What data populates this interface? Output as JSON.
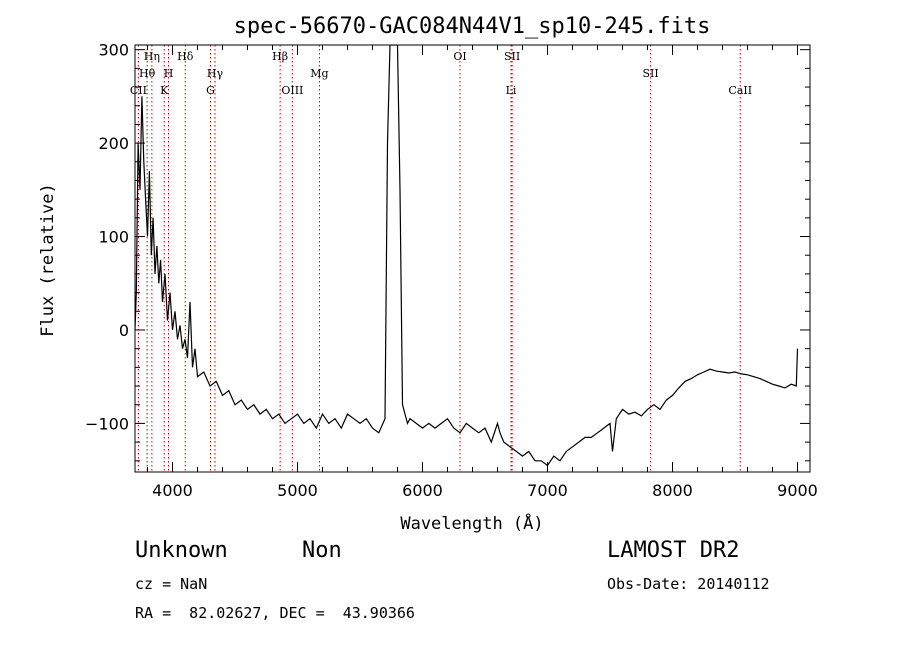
{
  "chart_data": {
    "type": "line",
    "title": "spec-56670-GAC084N44V1_sp10-245.fits",
    "xlabel": "Wavelength (Å)",
    "ylabel": "Flux (relative)",
    "xlim": [
      3700,
      9100
    ],
    "ylim": [
      -152,
      305
    ],
    "xticks": [
      4000,
      5000,
      6000,
      7000,
      8000,
      9000
    ],
    "yticks": [
      -100,
      0,
      100,
      200,
      300
    ],
    "grid": false,
    "series": [
      {
        "values_x": [
          3700,
          3710,
          3725,
          3740,
          3755,
          3770,
          3785,
          3800,
          3815,
          3830,
          3845,
          3860,
          3875,
          3890,
          3905,
          3920,
          3940,
          3960,
          3980,
          4000,
          4020,
          4040,
          4060,
          4080,
          4100,
          4120,
          4140,
          4160,
          4180,
          4200,
          4250,
          4300,
          4350,
          4400,
          4450,
          4500,
          4550,
          4600,
          4650,
          4700,
          4750,
          4800,
          4850,
          4900,
          4950,
          5000,
          5050,
          5100,
          5150,
          5200,
          5250,
          5300,
          5350,
          5400,
          5450,
          5500,
          5550,
          5600,
          5650,
          5700,
          5720,
          5740,
          5760,
          5800,
          5820,
          5840,
          5860,
          5880,
          5900,
          5950,
          6000,
          6050,
          6100,
          6150,
          6200,
          6250,
          6300,
          6350,
          6400,
          6450,
          6500,
          6550,
          6600,
          6620,
          6650,
          6700,
          6750,
          6800,
          6850,
          6900,
          6950,
          7000,
          7050,
          7100,
          7150,
          7200,
          7250,
          7300,
          7350,
          7400,
          7450,
          7500,
          7520,
          7550,
          7600,
          7650,
          7700,
          7750,
          7800,
          7850,
          7900,
          7950,
          8000,
          8050,
          8100,
          8150,
          8200,
          8250,
          8300,
          8350,
          8400,
          8450,
          8500,
          8550,
          8600,
          8650,
          8700,
          8750,
          8800,
          8850,
          8900,
          8950,
          8990,
          9000
        ],
        "values_y": [
          0,
          40,
          200,
          150,
          250,
          180,
          140,
          100,
          170,
          80,
          120,
          60,
          90,
          50,
          75,
          30,
          60,
          10,
          40,
          0,
          20,
          -10,
          5,
          -20,
          -10,
          -30,
          30,
          -40,
          -20,
          -50,
          -45,
          -60,
          -55,
          -70,
          -65,
          -80,
          -75,
          -85,
          -80,
          -90,
          -85,
          -95,
          -90,
          -100,
          -95,
          -90,
          -100,
          -95,
          -105,
          -90,
          -100,
          -95,
          -105,
          -90,
          -95,
          -100,
          -95,
          -105,
          -110,
          -95,
          200,
          305,
          305,
          305,
          150,
          -80,
          -90,
          -100,
          -95,
          -100,
          -105,
          -100,
          -105,
          -100,
          -95,
          -105,
          -110,
          -100,
          -105,
          -110,
          -105,
          -120,
          -100,
          -110,
          -120,
          -125,
          -130,
          -135,
          -130,
          -140,
          -140,
          -145,
          -135,
          -140,
          -130,
          -125,
          -120,
          -115,
          -115,
          -110,
          -105,
          -100,
          -130,
          -95,
          -85,
          -90,
          -88,
          -92,
          -85,
          -80,
          -85,
          -75,
          -70,
          -62,
          -55,
          -52,
          -48,
          -45,
          -42,
          -44,
          -45,
          -46,
          -45,
          -47,
          -48,
          -50,
          -52,
          -55,
          -58,
          -60,
          -62,
          -58,
          -60,
          -20
        ]
      }
    ],
    "lines": [
      {
        "label": "Hη",
        "x": 3835,
        "row": 0
      },
      {
        "label": "Hδ",
        "x": 4102,
        "row": 0
      },
      {
        "label": "Hβ",
        "x": 4861,
        "row": 0
      },
      {
        "label": "OI",
        "x": 6300,
        "row": 0
      },
      {
        "label": "SII",
        "x": 6717,
        "row": 0
      },
      {
        "label": "Hθ",
        "x": 3797,
        "row": 1
      },
      {
        "label": "H",
        "x": 3968,
        "row": 1
      },
      {
        "label": "Hγ",
        "x": 4340,
        "row": 1
      },
      {
        "label": "Mg",
        "x": 5175,
        "row": 1
      },
      {
        "label": "SII",
        "x": 7825,
        "row": 1
      },
      {
        "label": "CII",
        "x": 3727,
        "row": 2
      },
      {
        "label": "K",
        "x": 3934,
        "row": 2
      },
      {
        "label": "G",
        "x": 4304,
        "row": 2
      },
      {
        "label": "OIII",
        "x": 4959,
        "row": 2
      },
      {
        "label": "Li",
        "x": 6708,
        "row": 2
      },
      {
        "label": "CaII",
        "x": 8542,
        "row": 2
      }
    ],
    "line_color": "#c00000"
  },
  "info": {
    "class": "Unknown",
    "subclass": "Non",
    "survey": "LAMOST DR2",
    "cz": "cz = NaN",
    "obs_date": "Obs-Date: 20140112",
    "coords": "RA =  82.02627, DEC =  43.90366"
  }
}
